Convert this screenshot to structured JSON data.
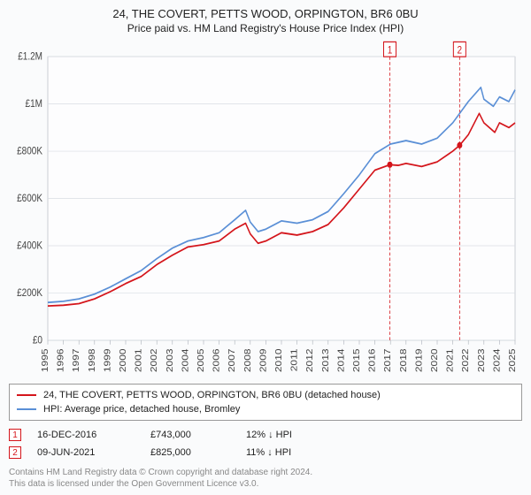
{
  "title": "24, THE COVERT, PETTS WOOD, ORPINGTON, BR6 0BU",
  "subtitle": "Price paid vs. HM Land Registry's House Price Index (HPI)",
  "chart": {
    "type": "line",
    "background_color": "#fdfdfe",
    "grid_color": "#d8dde3",
    "axis_color": "#aab0b8",
    "xlim": [
      1995,
      2025
    ],
    "ylim": [
      0,
      1200000
    ],
    "ytick_step": 200000,
    "ytick_labels": [
      "£0",
      "£200K",
      "£400K",
      "£600K",
      "£800K",
      "£1M",
      "£1.2M"
    ],
    "xtick_years": [
      1995,
      1996,
      1997,
      1998,
      1999,
      2000,
      2001,
      2002,
      2003,
      2004,
      2005,
      2006,
      2007,
      2008,
      2009,
      2010,
      2011,
      2012,
      2013,
      2014,
      2015,
      2016,
      2017,
      2018,
      2019,
      2020,
      2021,
      2022,
      2023,
      2024,
      2025
    ],
    "series": [
      {
        "id": "subject",
        "label": "24, THE COVERT, PETTS WOOD, ORPINGTON, BR6 0BU (detached house)",
        "color": "#d4151b",
        "line_width": 1.5,
        "data": [
          [
            1995,
            145000
          ],
          [
            1996,
            148000
          ],
          [
            1997,
            155000
          ],
          [
            1998,
            175000
          ],
          [
            1999,
            205000
          ],
          [
            2000,
            240000
          ],
          [
            2001,
            270000
          ],
          [
            2002,
            320000
          ],
          [
            2003,
            360000
          ],
          [
            2004,
            395000
          ],
          [
            2005,
            405000
          ],
          [
            2006,
            420000
          ],
          [
            2007,
            470000
          ],
          [
            2007.7,
            495000
          ],
          [
            2008,
            450000
          ],
          [
            2008.5,
            410000
          ],
          [
            2009,
            420000
          ],
          [
            2010,
            455000
          ],
          [
            2011,
            445000
          ],
          [
            2012,
            460000
          ],
          [
            2013,
            490000
          ],
          [
            2014,
            560000
          ],
          [
            2015,
            640000
          ],
          [
            2016,
            720000
          ],
          [
            2016.96,
            743000
          ],
          [
            2017.5,
            740000
          ],
          [
            2018,
            748000
          ],
          [
            2019,
            735000
          ],
          [
            2020,
            755000
          ],
          [
            2021,
            800000
          ],
          [
            2021.44,
            825000
          ],
          [
            2022,
            870000
          ],
          [
            2022.7,
            960000
          ],
          [
            2023,
            920000
          ],
          [
            2023.7,
            880000
          ],
          [
            2024,
            920000
          ],
          [
            2024.6,
            900000
          ],
          [
            2025,
            920000
          ]
        ]
      },
      {
        "id": "hpi",
        "label": "HPI: Average price, detached house, Bromley",
        "color": "#5a8fd6",
        "line_width": 1.5,
        "data": [
          [
            1995,
            160000
          ],
          [
            1996,
            165000
          ],
          [
            1997,
            175000
          ],
          [
            1998,
            195000
          ],
          [
            1999,
            225000
          ],
          [
            2000,
            260000
          ],
          [
            2001,
            295000
          ],
          [
            2002,
            345000
          ],
          [
            2003,
            390000
          ],
          [
            2004,
            420000
          ],
          [
            2005,
            435000
          ],
          [
            2006,
            455000
          ],
          [
            2007,
            510000
          ],
          [
            2007.7,
            550000
          ],
          [
            2008,
            500000
          ],
          [
            2008.5,
            460000
          ],
          [
            2009,
            470000
          ],
          [
            2010,
            505000
          ],
          [
            2011,
            495000
          ],
          [
            2012,
            510000
          ],
          [
            2013,
            545000
          ],
          [
            2014,
            620000
          ],
          [
            2015,
            700000
          ],
          [
            2016,
            790000
          ],
          [
            2017,
            830000
          ],
          [
            2018,
            845000
          ],
          [
            2019,
            830000
          ],
          [
            2020,
            855000
          ],
          [
            2021,
            920000
          ],
          [
            2022,
            1010000
          ],
          [
            2022.8,
            1070000
          ],
          [
            2023,
            1020000
          ],
          [
            2023.6,
            990000
          ],
          [
            2024,
            1030000
          ],
          [
            2024.6,
            1010000
          ],
          [
            2025,
            1060000
          ]
        ]
      }
    ],
    "markers": [
      {
        "id": "1",
        "x": 2016.96,
        "y": 743000,
        "color": "#d4151b",
        "line_dash": "3,2"
      },
      {
        "id": "2",
        "x": 2021.44,
        "y": 825000,
        "color": "#d4151b",
        "line_dash": "3,2"
      }
    ],
    "tick_fontsize": 10,
    "label_fontsize": 10
  },
  "legend": {
    "items": [
      {
        "color": "#d4151b",
        "label": "24, THE COVERT, PETTS WOOD, ORPINGTON, BR6 0BU (detached house)"
      },
      {
        "color": "#5a8fd6",
        "label": "HPI: Average price, detached house, Bromley"
      }
    ]
  },
  "transactions": [
    {
      "marker": "1",
      "marker_color": "#d4151b",
      "date": "16-DEC-2016",
      "price": "£743,000",
      "diff": "12% ↓ HPI"
    },
    {
      "marker": "2",
      "marker_color": "#d4151b",
      "date": "09-JUN-2021",
      "price": "£825,000",
      "diff": "11% ↓ HPI"
    }
  ],
  "footer": {
    "line1": "Contains HM Land Registry data © Crown copyright and database right 2024.",
    "line2": "This data is licensed under the Open Government Licence v3.0."
  }
}
